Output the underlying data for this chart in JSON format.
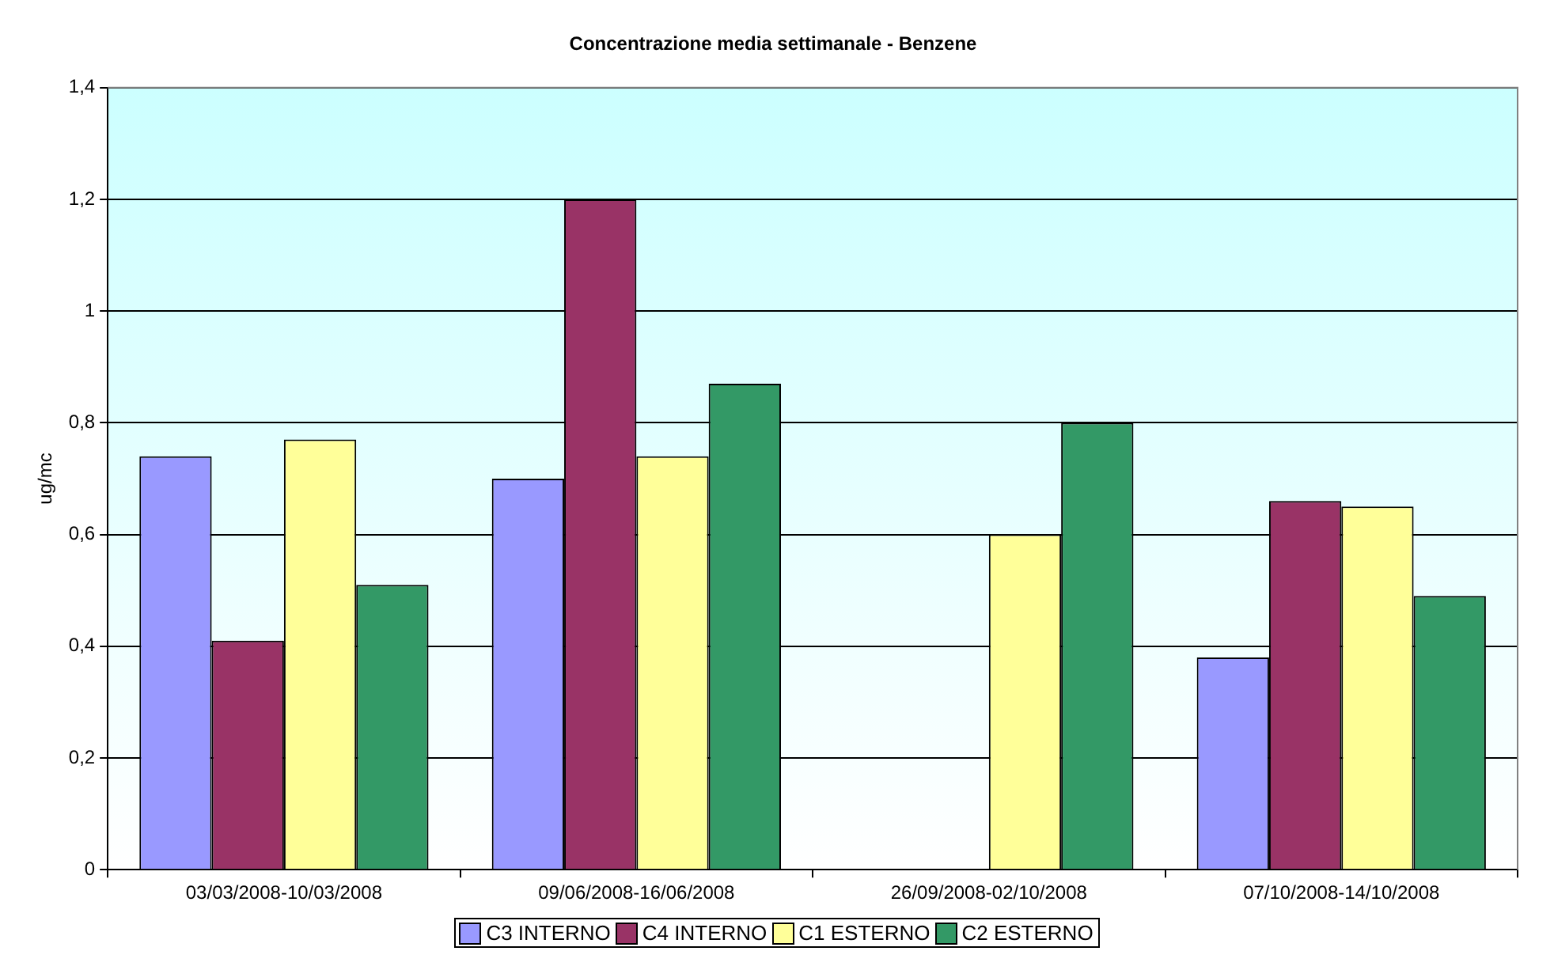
{
  "chart_data": {
    "type": "bar",
    "title": "Concentrazione media settimanale - Benzene",
    "ylabel": "ug/mc",
    "categories": [
      "03/03/2008-10/03/2008",
      "09/06/2008-16/06/2008",
      "26/09/2008-02/10/2008",
      "07/10/2008-14/10/2008"
    ],
    "series": [
      {
        "name": "C3 INTERNO",
        "color": "#9999ff",
        "values": [
          0.74,
          0.7,
          null,
          0.38
        ]
      },
      {
        "name": "C4 INTERNO",
        "color": "#993366",
        "values": [
          0.41,
          1.2,
          null,
          0.66
        ]
      },
      {
        "name": "C1 ESTERNO",
        "color": "#ffff99",
        "values": [
          0.77,
          0.74,
          0.6,
          0.65
        ]
      },
      {
        "name": "C2 ESTERNO",
        "color": "#339966",
        "values": [
          0.51,
          0.87,
          0.8,
          0.49
        ]
      }
    ],
    "ylim": [
      0,
      1.4
    ],
    "yticks": [
      {
        "value": 0,
        "label": "0"
      },
      {
        "value": 0.2,
        "label": "0,2"
      },
      {
        "value": 0.4,
        "label": "0,4"
      },
      {
        "value": 0.6,
        "label": "0,6"
      },
      {
        "value": 0.8,
        "label": "0,8"
      },
      {
        "value": 1,
        "label": "1"
      },
      {
        "value": 1.2,
        "label": "1,2"
      },
      {
        "value": 1.4,
        "label": "1,4"
      }
    ],
    "grid": "y",
    "legend": "bottom"
  }
}
